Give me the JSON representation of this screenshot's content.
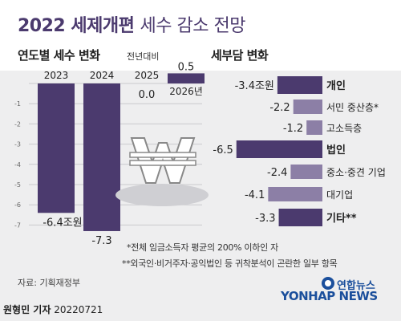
{
  "header": {
    "title_bold": "2022 세제개편",
    "title_light": "세수 감소 전망"
  },
  "left_panel": {
    "title": "연도별 세수 변화",
    "note": "전년대비"
  },
  "right_panel": {
    "title": "세부담 변화"
  },
  "chart_data": [
    {
      "type": "bar",
      "title": "연도별 세수 변화",
      "subtitle": "전년대비",
      "categories": [
        "2023",
        "2024",
        "2025",
        "2026년"
      ],
      "values": [
        -6.4,
        -7.3,
        0.0,
        0.5
      ],
      "value_labels": [
        "-6.4조원",
        "-7.3",
        "0.0",
        "0.5"
      ],
      "yticks": [
        -7,
        -6,
        -5,
        -4,
        -3,
        -2,
        -1,
        0
      ],
      "ylim": [
        -7.5,
        1.0
      ],
      "color": "#4b3a6e",
      "grid": true
    },
    {
      "type": "bar",
      "orientation": "horizontal",
      "title": "세부담 변화",
      "categories": [
        "개인",
        "서민 중산층*",
        "고소득층",
        "법인",
        "중소·중견 기업",
        "대기업",
        "기타**"
      ],
      "values": [
        -3.4,
        -2.2,
        -1.2,
        -6.5,
        -2.4,
        -4.1,
        -3.3
      ],
      "value_labels": [
        "-3.4조원",
        "-2.2",
        "-1.2",
        "-6.5",
        "-2.4",
        "-4.1",
        "-3.3"
      ],
      "emphasis": [
        true,
        false,
        false,
        true,
        false,
        false,
        true
      ],
      "colors": {
        "main": "#4b3a6e",
        "sub": "#8c7fa6"
      }
    }
  ],
  "footnotes": [
    "*전체 임금소득자 평균의 200% 이하인 자",
    "**외국인·비거주자·공익법인 등 귀착분석이 곤란한 일부 항목"
  ],
  "source": "자료: 기획재정부",
  "byline": {
    "name": "원형민 기자",
    "date": "20220721"
  },
  "logo": {
    "korean": "연합뉴스",
    "english": "YONHAP NEWS"
  },
  "colors": {
    "accent": "#4b3a6e",
    "accent_light": "#8c7fa6",
    "background": "#eeeeef"
  }
}
